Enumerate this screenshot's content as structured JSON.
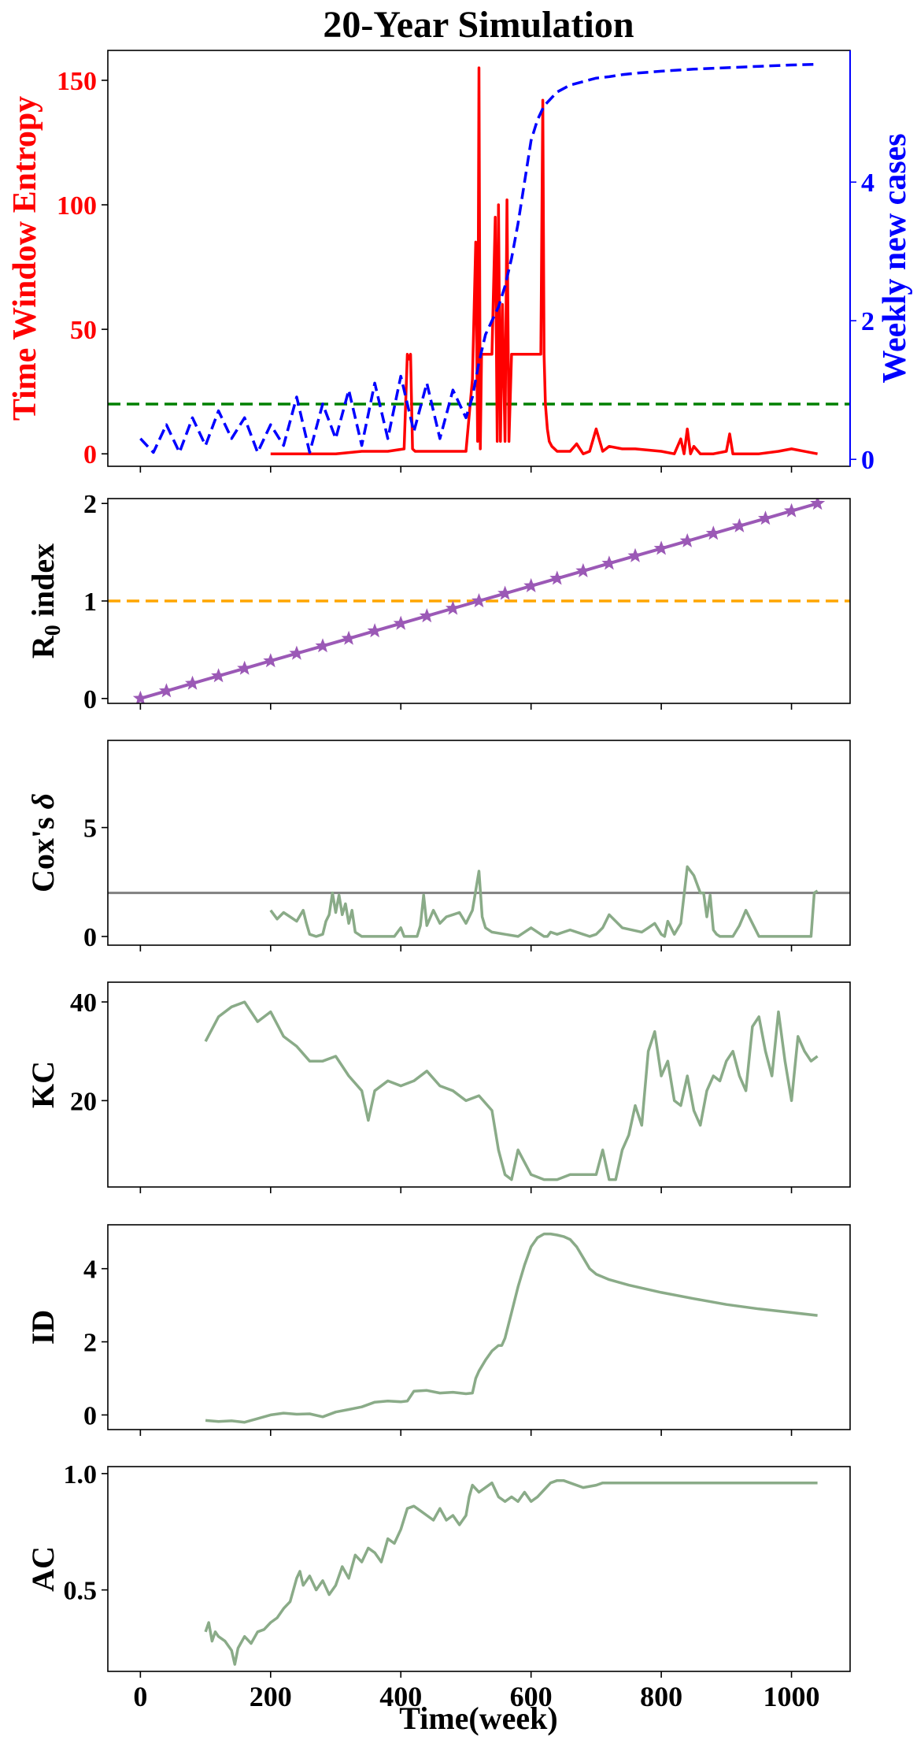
{
  "chart_data": {
    "title": "20-Year Simulation",
    "xlabel": "Time(week)",
    "xlim": [
      -50,
      1090
    ],
    "xticks": [
      0,
      200,
      400,
      600,
      800,
      1000
    ],
    "colors": {
      "entropy": "#ff0000",
      "cases": "#0000ff",
      "threshold": "#008000",
      "r0": "#9b59b6",
      "r0_ref": "#ffa500",
      "cox_ref": "#808080",
      "indicator": "#8aab88"
    },
    "panels": [
      {
        "id": "entropy",
        "type": "line",
        "ylabel": "Time Window Entropy",
        "ylim": [
          -5,
          162
        ],
        "yticks": [
          0,
          50,
          100,
          150
        ],
        "ylabel_right": "Weekly new cases",
        "ylim_right": [
          -0.1,
          5.9
        ],
        "yticks_right": [
          0,
          2,
          4
        ],
        "threshold": 20,
        "series": [
          {
            "axis": "left",
            "style": "solid",
            "color": "#ff0000",
            "x": [
              200,
              260,
              300,
              340,
              380,
              405,
              410,
              412,
              415,
              418,
              422,
              430,
              470,
              500,
              510,
              515,
              518,
              520,
              522,
              524,
              526,
              530,
              540,
              545,
              548,
              550,
              553,
              556,
              560,
              563,
              566,
              570,
              580,
              600,
              615,
              618,
              620,
              622,
              625,
              628,
              632,
              640,
              660,
              670,
              680,
              690,
              700,
              710,
              720,
              740,
              760,
              800,
              820,
              830,
              835,
              840,
              845,
              850,
              860,
              880,
              900,
              905,
              910,
              920,
              950,
              980,
              1000,
              1040
            ],
            "y": [
              0,
              0,
              0,
              1,
              1,
              2,
              40,
              38,
              40,
              2,
              1,
              1,
              1,
              1,
              30,
              85,
              5,
              155,
              2,
              40,
              40,
              40,
              40,
              95,
              5,
              100,
              5,
              60,
              5,
              102,
              5,
              40,
              40,
              40,
              40,
              142,
              40,
              20,
              10,
              5,
              3,
              1,
              1,
              4,
              0,
              1,
              10,
              1,
              3,
              2,
              2,
              1,
              0,
              6,
              0,
              10,
              0,
              3,
              0,
              0,
              1,
              8,
              0,
              0,
              0,
              1,
              2,
              0
            ]
          },
          {
            "axis": "right",
            "style": "dashed",
            "color": "#0000ff",
            "x": [
              0,
              20,
              40,
              60,
              80,
              100,
              120,
              140,
              160,
              180,
              200,
              220,
              240,
              260,
              280,
              300,
              320,
              340,
              360,
              380,
              400,
              420,
              440,
              460,
              480,
              500,
              510,
              520,
              530,
              540,
              550,
              560,
              570,
              580,
              590,
              600,
              610,
              620,
              630,
              640,
              660,
              680,
              700,
              720,
              740,
              760,
              800,
              850,
              900,
              950,
              1000,
              1040
            ],
            "y": [
              0.3,
              0.1,
              0.5,
              0.1,
              0.6,
              0.2,
              0.7,
              0.3,
              0.6,
              0.1,
              0.5,
              0.2,
              0.9,
              0.1,
              0.8,
              0.3,
              1.0,
              0.2,
              1.1,
              0.3,
              1.2,
              0.4,
              1.1,
              0.3,
              1.0,
              0.6,
              0.9,
              1.4,
              1.8,
              2.0,
              2.2,
              2.5,
              2.9,
              3.4,
              4.0,
              4.6,
              4.9,
              5.1,
              5.2,
              5.3,
              5.4,
              5.45,
              5.5,
              5.52,
              5.55,
              5.57,
              5.6,
              5.63,
              5.65,
              5.67,
              5.69,
              5.7
            ]
          }
        ]
      },
      {
        "id": "r0",
        "type": "line",
        "ylabel": "R",
        "ylabel_sub": "0",
        "ylabel_tail": " index",
        "ylim": [
          -0.05,
          2.05
        ],
        "yticks": [
          0,
          1,
          2
        ],
        "reference": 1,
        "series": [
          {
            "style": "star",
            "color": "#9b59b6",
            "x": [
              0,
              40,
              80,
              120,
              160,
              200,
              240,
              280,
              320,
              360,
              400,
              440,
              480,
              520,
              560,
              600,
              640,
              680,
              720,
              760,
              800,
              840,
              880,
              920,
              960,
              1000,
              1040
            ],
            "y": [
              0,
              0.077,
              0.154,
              0.231,
              0.308,
              0.385,
              0.462,
              0.538,
              0.615,
              0.692,
              0.769,
              0.846,
              0.923,
              1.0,
              1.077,
              1.154,
              1.231,
              1.308,
              1.385,
              1.462,
              1.538,
              1.615,
              1.692,
              1.769,
              1.846,
              1.923,
              2.0
            ]
          }
        ]
      },
      {
        "id": "cox",
        "type": "line",
        "ylabel": "Cox's ",
        "ylabel_italic": "δ",
        "ylim": [
          -0.4,
          9.0
        ],
        "yticks": [
          0,
          5
        ],
        "reference": 2,
        "series": [
          {
            "style": "solid",
            "color": "#8aab88",
            "x": [
              200,
              210,
              220,
              230,
              240,
              250,
              255,
              260,
              270,
              280,
              285,
              290,
              295,
              300,
              305,
              310,
              315,
              320,
              325,
              330,
              340,
              380,
              390,
              400,
              405,
              410,
              415,
              420,
              425,
              430,
              435,
              440,
              450,
              460,
              470,
              480,
              490,
              500,
              510,
              520,
              525,
              530,
              540,
              560,
              580,
              600,
              610,
              620,
              625,
              630,
              640,
              650,
              660,
              680,
              690,
              700,
              710,
              720,
              740,
              770,
              780,
              790,
              800,
              805,
              810,
              820,
              830,
              840,
              850,
              860,
              865,
              870,
              875,
              880,
              885,
              890,
              895,
              900,
              910,
              920,
              930,
              940,
              950,
              960,
              1000,
              1030,
              1035,
              1040
            ],
            "y": [
              1.2,
              0.8,
              1.1,
              0.9,
              0.7,
              1.2,
              0.6,
              0.1,
              0,
              0.1,
              0.7,
              1.0,
              2.0,
              1.1,
              1.9,
              1.0,
              1.5,
              0.6,
              1.2,
              0.2,
              0,
              0,
              0,
              0.4,
              0,
              0,
              0,
              0,
              0,
              0.5,
              1.9,
              0.5,
              1.2,
              0.6,
              0.9,
              1.0,
              1.1,
              0.6,
              1.2,
              3.0,
              0.9,
              0.4,
              0.2,
              0.1,
              0,
              0.4,
              0.2,
              0,
              0,
              0.2,
              0.1,
              0.2,
              0.3,
              0.1,
              0,
              0.1,
              0.4,
              1.0,
              0.4,
              0.2,
              0.4,
              0.6,
              0.1,
              0,
              0.7,
              0.1,
              0.6,
              3.2,
              2.8,
              2.0,
              2.0,
              0.9,
              1.9,
              0.3,
              0.1,
              0,
              0,
              0,
              0,
              0.5,
              1.2,
              0.6,
              0,
              0,
              0,
              0,
              2.0,
              2.1
            ]
          }
        ]
      },
      {
        "id": "kc",
        "type": "line",
        "ylabel": "KC",
        "ylim": [
          2.5,
          44
        ],
        "yticks": [
          20,
          40
        ],
        "series": [
          {
            "style": "solid",
            "color": "#8aab88",
            "x": [
              100,
              120,
              140,
              160,
              180,
              200,
              220,
              240,
              260,
              280,
              300,
              320,
              340,
              350,
              360,
              380,
              400,
              420,
              440,
              460,
              480,
              500,
              520,
              540,
              550,
              560,
              570,
              580,
              600,
              620,
              640,
              660,
              680,
              700,
              710,
              720,
              730,
              740,
              750,
              760,
              770,
              780,
              790,
              800,
              810,
              820,
              830,
              840,
              850,
              860,
              870,
              880,
              890,
              900,
              910,
              920,
              930,
              940,
              950,
              960,
              970,
              980,
              990,
              1000,
              1010,
              1020,
              1030,
              1040
            ],
            "y": [
              32,
              37,
              39,
              40,
              36,
              38,
              33,
              31,
              28,
              28,
              29,
              25,
              22,
              16,
              22,
              24,
              23,
              24,
              26,
              23,
              22,
              20,
              21,
              18,
              10,
              5,
              4,
              10,
              5,
              4,
              4,
              5,
              5,
              5,
              10,
              4,
              4,
              10,
              13,
              19,
              15,
              30,
              34,
              25,
              28,
              20,
              19,
              25,
              18,
              15,
              22,
              25,
              24,
              28,
              30,
              25,
              22,
              35,
              37,
              30,
              25,
              38,
              28,
              20,
              33,
              30,
              28,
              29
            ]
          }
        ]
      },
      {
        "id": "id",
        "type": "line",
        "ylabel": "ID",
        "ylim": [
          -0.4,
          5.2
        ],
        "yticks": [
          0,
          2,
          4
        ],
        "series": [
          {
            "style": "solid",
            "color": "#8aab88",
            "x": [
              100,
              120,
              140,
              160,
              180,
              200,
              220,
              240,
              260,
              280,
              300,
              320,
              340,
              360,
              380,
              400,
              410,
              420,
              440,
              460,
              480,
              500,
              510,
              515,
              520,
              530,
              540,
              550,
              555,
              560,
              570,
              580,
              590,
              600,
              610,
              620,
              630,
              640,
              650,
              660,
              670,
              680,
              690,
              700,
              720,
              750,
              800,
              850,
              900,
              950,
              1000,
              1040
            ],
            "y": [
              -0.15,
              -0.18,
              -0.16,
              -0.2,
              -0.1,
              0.0,
              0.05,
              0.02,
              0.03,
              -0.05,
              0.08,
              0.15,
              0.22,
              0.35,
              0.38,
              0.36,
              0.38,
              0.65,
              0.67,
              0.6,
              0.62,
              0.58,
              0.6,
              1.0,
              1.2,
              1.5,
              1.75,
              1.9,
              1.9,
              2.1,
              2.8,
              3.5,
              4.1,
              4.6,
              4.85,
              4.95,
              4.95,
              4.92,
              4.88,
              4.8,
              4.6,
              4.3,
              4.0,
              3.85,
              3.7,
              3.55,
              3.35,
              3.18,
              3.02,
              2.9,
              2.8,
              2.72
            ]
          }
        ]
      },
      {
        "id": "ac",
        "type": "line",
        "ylabel": "AC",
        "ylim": [
          0.15,
          1.03
        ],
        "yticks": [
          0.5,
          1.0
        ],
        "ytick_labels": [
          "0.5",
          "1.0"
        ],
        "series": [
          {
            "style": "solid",
            "color": "#8aab88",
            "x": [
              100,
              105,
              110,
              115,
              120,
              130,
              140,
              145,
              150,
              160,
              170,
              180,
              190,
              200,
              210,
              220,
              230,
              240,
              245,
              250,
              260,
              270,
              280,
              290,
              300,
              310,
              320,
              330,
              340,
              350,
              360,
              370,
              380,
              390,
              400,
              410,
              420,
              430,
              440,
              450,
              460,
              470,
              480,
              490,
              500,
              505,
              510,
              520,
              530,
              540,
              550,
              560,
              570,
              580,
              590,
              600,
              610,
              620,
              630,
              640,
              650,
              660,
              680,
              700,
              710,
              720,
              750,
              800,
              900,
              1000,
              1040
            ],
            "y": [
              0.32,
              0.36,
              0.28,
              0.32,
              0.3,
              0.28,
              0.24,
              0.18,
              0.25,
              0.3,
              0.27,
              0.32,
              0.33,
              0.36,
              0.38,
              0.42,
              0.45,
              0.55,
              0.58,
              0.52,
              0.56,
              0.5,
              0.54,
              0.48,
              0.52,
              0.6,
              0.55,
              0.65,
              0.62,
              0.68,
              0.66,
              0.62,
              0.72,
              0.7,
              0.76,
              0.85,
              0.86,
              0.84,
              0.82,
              0.8,
              0.85,
              0.8,
              0.82,
              0.78,
              0.82,
              0.9,
              0.95,
              0.92,
              0.94,
              0.96,
              0.9,
              0.88,
              0.9,
              0.88,
              0.92,
              0.88,
              0.9,
              0.93,
              0.96,
              0.97,
              0.97,
              0.96,
              0.94,
              0.95,
              0.96,
              0.96,
              0.96,
              0.96,
              0.96,
              0.96,
              0.96
            ]
          }
        ]
      }
    ]
  }
}
